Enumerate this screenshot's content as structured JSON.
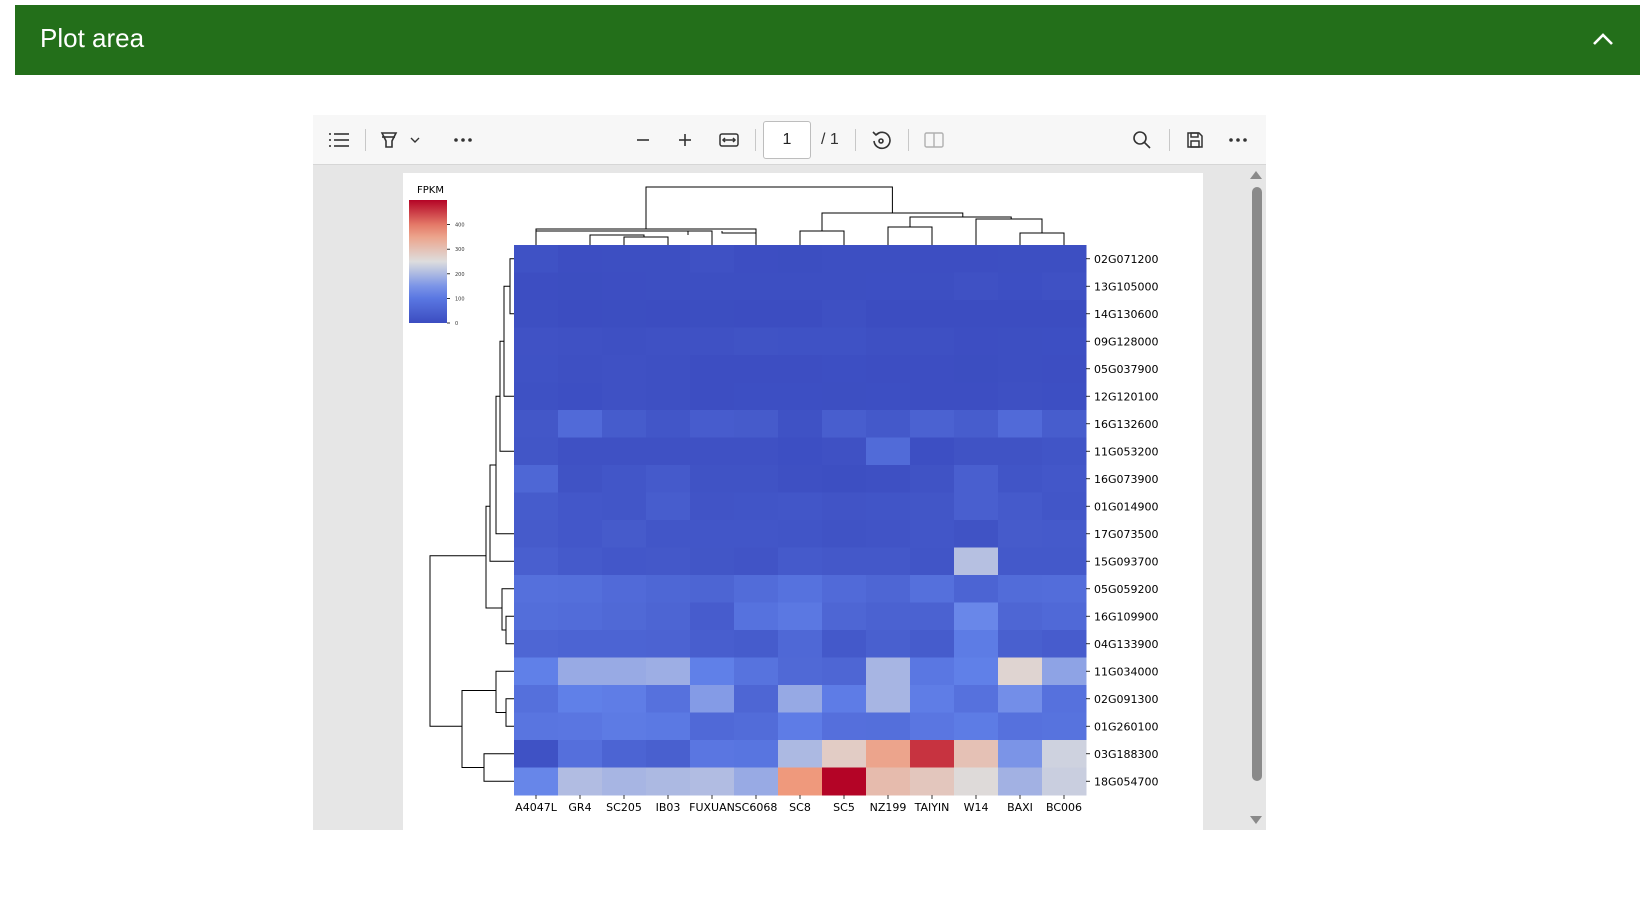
{
  "panel": {
    "title": "Plot area",
    "collapse_icon": "chevron-up-icon"
  },
  "viewer": {
    "toolbar": {
      "contents_icon": "list-icon",
      "highlight_icon": "highlighter-icon",
      "dropdown_icon": "chevron-down-icon",
      "more_left_icon": "more-horizontal-icon",
      "zoom_out_icon": "minus-icon",
      "zoom_in_icon": "plus-icon",
      "fit_icon": "fit-width-icon",
      "page_value": "1",
      "page_total": "/ 1",
      "rotate_icon": "rotate-icon",
      "two_page_icon": "page-view-icon",
      "search_icon": "search-icon",
      "save_icon": "save-icon",
      "more_right_icon": "more-horizontal-icon"
    }
  },
  "chart_data": {
    "type": "heatmap",
    "colorbar": {
      "title": "FPKM",
      "ticks": [
        "400",
        "300",
        "200",
        "100",
        "0"
      ],
      "range": [
        0,
        500
      ],
      "colormap": "coolwarm"
    },
    "columns": [
      "A4047L",
      "GR4",
      "SC205",
      "IB03",
      "FUXUAN",
      "SC6068",
      "SC8",
      "SC5",
      "NZ199",
      "TAIYIN",
      "W14",
      "BAXI",
      "BC006"
    ],
    "rows": [
      "02G071200",
      "13G105000",
      "14G130600",
      "09G128000",
      "05G037900",
      "12G120100",
      "16G132600",
      "11G053200",
      "16G073900",
      "01G014900",
      "17G073500",
      "15G093700",
      "05G059200",
      "16G109900",
      "04G133900",
      "11G034000",
      "02G091300",
      "01G260100",
      "03G188300",
      "18G054700"
    ],
    "values": [
      [
        14,
        5,
        6,
        7,
        12,
        5,
        4,
        6,
        6,
        5,
        5,
        6,
        7
      ],
      [
        5,
        4,
        5,
        6,
        6,
        6,
        7,
        6,
        8,
        6,
        12,
        8,
        12
      ],
      [
        6,
        3,
        4,
        3,
        4,
        3,
        3,
        10,
        3,
        3,
        3,
        3,
        3
      ],
      [
        15,
        12,
        10,
        12,
        12,
        16,
        14,
        14,
        10,
        10,
        5,
        6,
        8
      ],
      [
        14,
        10,
        12,
        9,
        5,
        5,
        5,
        8,
        5,
        5,
        4,
        6,
        5
      ],
      [
        11,
        8,
        12,
        10,
        5,
        8,
        8,
        6,
        8,
        5,
        5,
        10,
        8
      ],
      [
        25,
        70,
        36,
        23,
        38,
        34,
        14,
        42,
        30,
        50,
        40,
        70,
        40
      ],
      [
        22,
        12,
        12,
        12,
        12,
        12,
        8,
        12,
        72,
        8,
        16,
        16,
        20
      ],
      [
        62,
        16,
        24,
        32,
        16,
        16,
        10,
        6,
        10,
        16,
        44,
        20,
        26
      ],
      [
        36,
        26,
        24,
        40,
        18,
        20,
        24,
        18,
        20,
        22,
        44,
        32,
        24
      ],
      [
        34,
        26,
        34,
        24,
        24,
        24,
        20,
        16,
        18,
        24,
        16,
        34,
        32
      ],
      [
        44,
        32,
        26,
        28,
        22,
        18,
        32,
        28,
        28,
        20,
        210,
        30,
        30
      ],
      [
        84,
        80,
        70,
        62,
        58,
        74,
        88,
        70,
        60,
        84,
        56,
        74,
        76
      ],
      [
        78,
        74,
        66,
        58,
        38,
        88,
        102,
        60,
        52,
        52,
        132,
        60,
        68
      ],
      [
        60,
        56,
        56,
        54,
        42,
        36,
        64,
        30,
        46,
        36,
        110,
        46,
        38
      ],
      [
        120,
        180,
        180,
        185,
        120,
        90,
        66,
        60,
        195,
        100,
        120,
        265,
        170
      ],
      [
        84,
        120,
        114,
        86,
        160,
        60,
        178,
        112,
        195,
        114,
        86,
        142,
        86
      ],
      [
        96,
        98,
        108,
        104,
        68,
        74,
        112,
        82,
        80,
        98,
        110,
        86,
        90
      ],
      [
        14,
        82,
        56,
        46,
        98,
        94,
        200,
        280,
        350,
        460,
        300,
        150,
        235
      ],
      [
        130,
        205,
        195,
        200,
        205,
        180,
        370,
        500,
        310,
        290,
        255,
        190,
        230
      ]
    ]
  }
}
